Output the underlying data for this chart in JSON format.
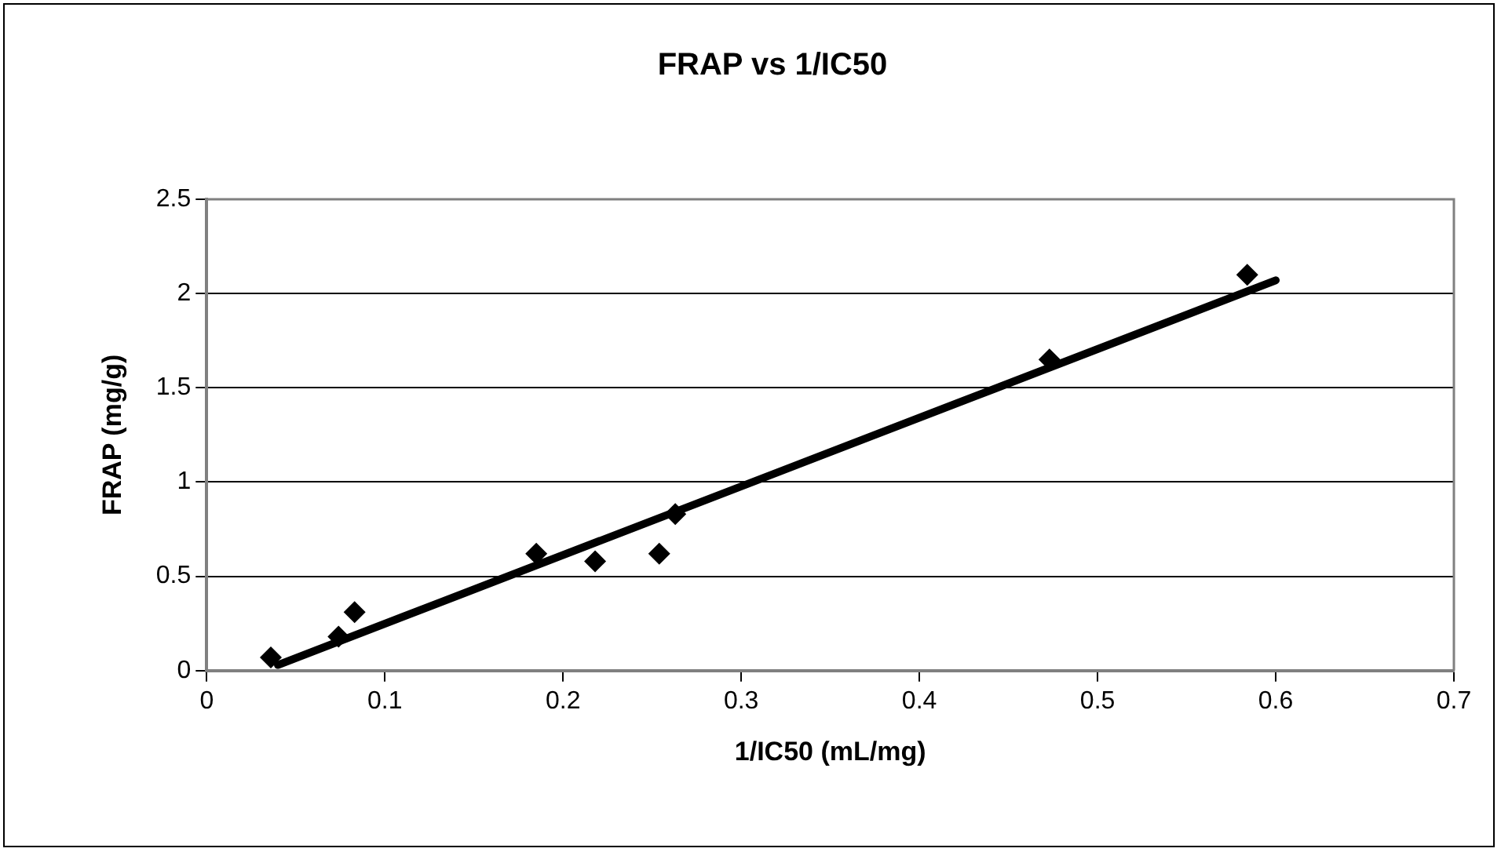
{
  "chart_data": {
    "type": "scatter",
    "title": "FRAP vs 1/IC50",
    "xlabel": "1/IC50 (mL/mg)",
    "ylabel": "FRAP (mg/g)",
    "xlim": [
      0,
      0.7
    ],
    "xticks": [
      0,
      0.1,
      0.2,
      0.3,
      0.4,
      0.5,
      0.6,
      0.7
    ],
    "ylim": [
      0,
      2.5
    ],
    "yticks": [
      0,
      0.5,
      1,
      1.5,
      2,
      2.5
    ],
    "grid": "y",
    "marker": "diamond",
    "series": [
      {
        "color": "#000000",
        "x": [
          0.036,
          0.074,
          0.083,
          0.185,
          0.218,
          0.254,
          0.263,
          0.473,
          0.584
        ],
        "values": [
          0.07,
          0.18,
          0.31,
          0.62,
          0.58,
          0.62,
          0.83,
          1.65,
          2.1
        ]
      },
      {
        "type": "line",
        "color": "#000000",
        "marker": "none",
        "x": [
          0.04,
          0.6
        ],
        "values": [
          0.03,
          2.07
        ]
      }
    ]
  }
}
